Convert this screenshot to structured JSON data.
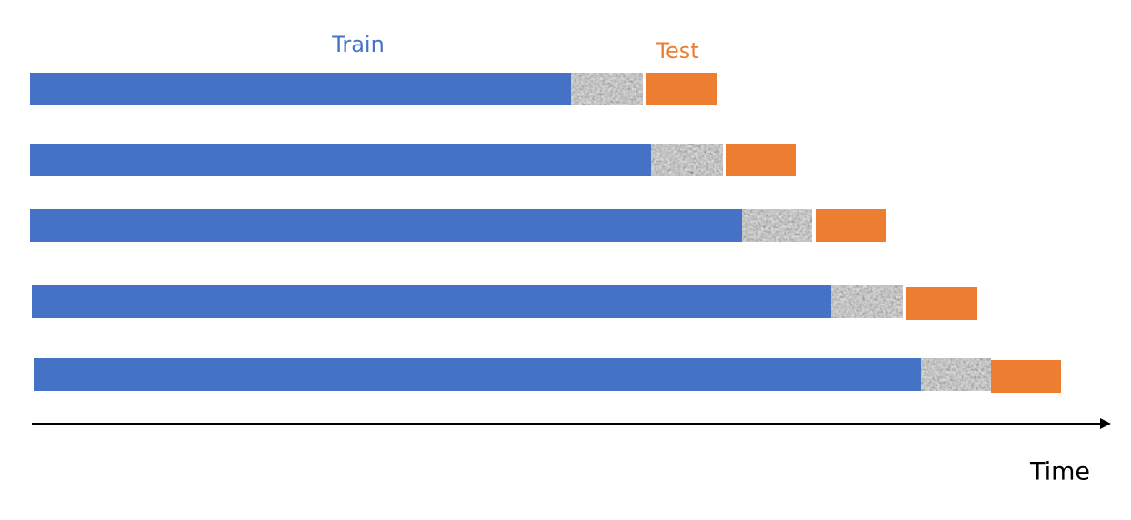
{
  "labels": {
    "train": "Train",
    "test": "Test"
  },
  "axis_label": "Time"
}
